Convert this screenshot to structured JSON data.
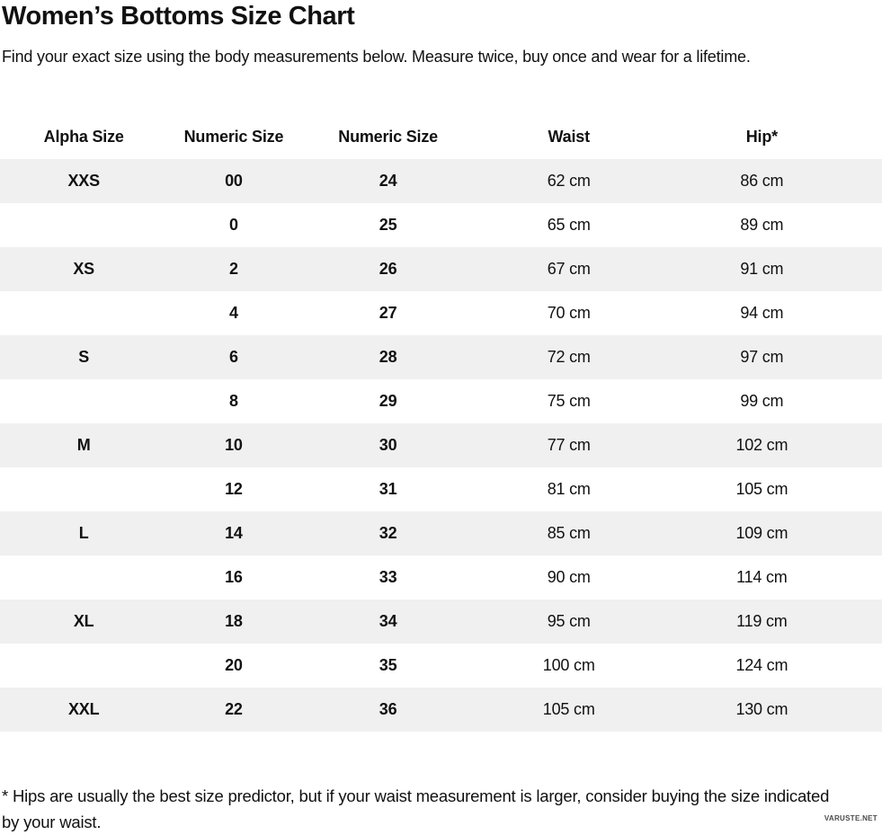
{
  "page": {
    "title": "Women’s Bottoms Size Chart",
    "subtitle": "Find your exact size using the body measurements below. Measure twice, buy once and wear for a lifetime.",
    "footnote": "* Hips are usually the best size predictor, but if your waist measurement is larger, consider buying the size indicated by your waist.",
    "watermark": "VARUSTE.NET"
  },
  "colors": {
    "row_alt_background": "#f0f0f0",
    "text": "#111111",
    "watermark": "#4a4a4a"
  },
  "table": {
    "columns": [
      "Alpha Size",
      "Numeric Size",
      "Numeric Size",
      "Waist",
      "Hip*"
    ],
    "rows": [
      [
        "XXS",
        "00",
        "24",
        "62 cm",
        "86 cm"
      ],
      [
        "",
        "0",
        "25",
        "65 cm",
        "89 cm"
      ],
      [
        "XS",
        "2",
        "26",
        "67 cm",
        "91 cm"
      ],
      [
        "",
        "4",
        "27",
        "70 cm",
        "94 cm"
      ],
      [
        "S",
        "6",
        "28",
        "72 cm",
        "97 cm"
      ],
      [
        "",
        "8",
        "29",
        "75 cm",
        "99 cm"
      ],
      [
        "M",
        "10",
        "30",
        "77 cm",
        "102 cm"
      ],
      [
        "",
        "12",
        "31",
        "81 cm",
        "105 cm"
      ],
      [
        "L",
        "14",
        "32",
        "85 cm",
        "109 cm"
      ],
      [
        "",
        "16",
        "33",
        "90 cm",
        "114 cm"
      ],
      [
        "XL",
        "18",
        "34",
        "95 cm",
        "119 cm"
      ],
      [
        "",
        "20",
        "35",
        "100 cm",
        "124 cm"
      ],
      [
        "XXL",
        "22",
        "36",
        "105 cm",
        "130 cm"
      ]
    ]
  }
}
